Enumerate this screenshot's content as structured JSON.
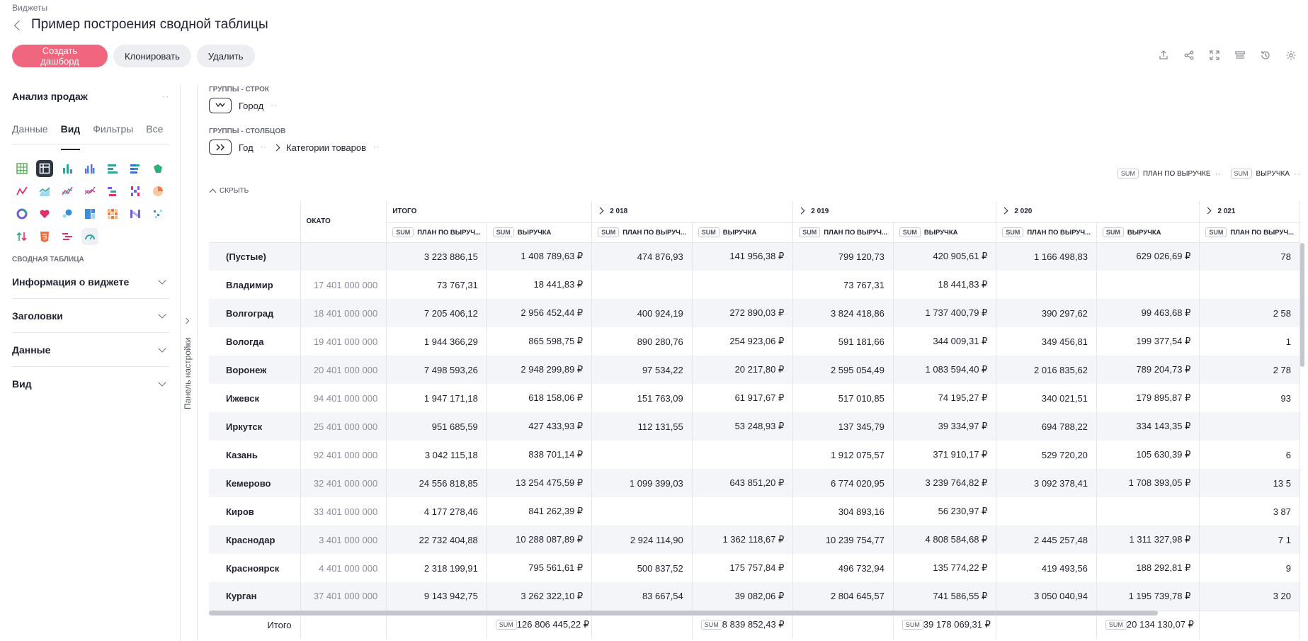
{
  "breadcrumb": "Виджеты",
  "page_title": "Пример построения сводной таблицы",
  "buttons": {
    "create": "Создать дашборд",
    "clone": "Клонировать",
    "delete": "Удалить"
  },
  "toolbar_icons": [
    "export-icon",
    "share-icon",
    "fullscreen-icon",
    "filter-panel-icon",
    "history-icon",
    "settings-icon"
  ],
  "left_panel": {
    "title": "Анализ продаж",
    "tabs": [
      "Данные",
      "Вид",
      "Фильтры",
      "Все"
    ],
    "active_tab": "Вид",
    "section_label": "СВОДНАЯ ТАБЛИЦА",
    "accordions": [
      "Информация о виджете",
      "Заголовки",
      "Данные",
      "Вид"
    ],
    "panel_settings_label": "Панель настройки"
  },
  "groups": {
    "rows_label": "ГРУППЫ - СТРОК",
    "rows_field": "Город",
    "cols_label": "ГРУППЫ - СТОЛБЦОВ",
    "cols_field_1": "Год",
    "cols_field_2": "Категории товаров"
  },
  "measures": [
    {
      "agg": "SUM",
      "name": "ПЛАН ПО ВЫРУЧКЕ"
    },
    {
      "agg": "SUM",
      "name": "ВЫРУЧКА"
    }
  ],
  "hide_label": "СКРЫТЬ",
  "table": {
    "okato_header": "ОКАТО",
    "total_header": "ИТОГО",
    "years": [
      "2 018",
      "2 019",
      "2 020",
      "2 021"
    ],
    "sum_label": "SUM",
    "plan_header": "ПЛАН ПО ВЫРУЧ...",
    "revenue_header": "ВЫРУЧКА",
    "rows": [
      {
        "city": "(Пустые)",
        "okato": "",
        "vals": [
          "3 223 886,15",
          "1 408 789,63 ₽",
          "474 876,93",
          "141 956,38 ₽",
          "799 120,73",
          "420 905,61 ₽",
          "1 166 498,83",
          "629 026,69 ₽",
          "78"
        ]
      },
      {
        "city": "Владимир",
        "okato": "17 401 000 000",
        "vals": [
          "73 767,31",
          "18 441,83 ₽",
          "",
          "",
          "73 767,31",
          "18 441,83 ₽",
          "",
          "",
          ""
        ]
      },
      {
        "city": "Волгоград",
        "okato": "18 401 000 000",
        "vals": [
          "7 205 406,12",
          "2 956 452,44 ₽",
          "400 924,19",
          "272 890,03 ₽",
          "3 824 418,86",
          "1 737 400,79 ₽",
          "390 297,62",
          "99 463,68 ₽",
          "2 58"
        ]
      },
      {
        "city": "Вологда",
        "okato": "19 401 000 000",
        "vals": [
          "1 944 366,29",
          "865 598,75 ₽",
          "890 280,76",
          "254 923,06 ₽",
          "591 181,66",
          "344 009,31 ₽",
          "349 456,81",
          "199 377,54 ₽",
          "1"
        ]
      },
      {
        "city": "Воронеж",
        "okato": "20 401 000 000",
        "vals": [
          "7 498 593,26",
          "2 948 299,89 ₽",
          "97 534,22",
          "20 217,80 ₽",
          "2 595 054,49",
          "1 083 594,40 ₽",
          "2 016 835,62",
          "789 204,73 ₽",
          "2 78"
        ]
      },
      {
        "city": "Ижевск",
        "okato": "94 401 000 000",
        "vals": [
          "1 947 171,18",
          "618 158,06 ₽",
          "151 763,09",
          "61 917,67 ₽",
          "517 010,85",
          "74 195,27 ₽",
          "340 021,51",
          "179 895,87 ₽",
          "93"
        ]
      },
      {
        "city": "Иркутск",
        "okato": "25 401 000 000",
        "vals": [
          "951 685,59",
          "427 433,93 ₽",
          "112 131,55",
          "53 248,93 ₽",
          "137 345,79",
          "39 334,97 ₽",
          "694 788,22",
          "334 143,35 ₽",
          ""
        ]
      },
      {
        "city": "Казань",
        "okato": "92 401 000 000",
        "vals": [
          "3 042 115,18",
          "838 701,14 ₽",
          "",
          "",
          "1 912 075,57",
          "371 910,17 ₽",
          "529 720,20",
          "105 630,39 ₽",
          "6"
        ]
      },
      {
        "city": "Кемерово",
        "okato": "32 401 000 000",
        "vals": [
          "24 556 818,85",
          "13 254 475,59 ₽",
          "1 099 399,03",
          "643 851,20 ₽",
          "6 774 020,95",
          "3 239 764,82 ₽",
          "3 092 378,41",
          "1 708 393,05 ₽",
          "13 5"
        ]
      },
      {
        "city": "Киров",
        "okato": "33 401 000 000",
        "vals": [
          "4 177 278,46",
          "841 262,39 ₽",
          "",
          "",
          "304 893,16",
          "56 230,97 ₽",
          "",
          "",
          "3 87"
        ]
      },
      {
        "city": "Краснодар",
        "okato": "3 401 000 000",
        "vals": [
          "22 732 404,88",
          "10 288 087,89 ₽",
          "2 924 114,90",
          "1 362 118,67 ₽",
          "10 239 754,77",
          "4 808 584,68 ₽",
          "2 445 257,48",
          "1 311 327,98 ₽",
          "7 1"
        ]
      },
      {
        "city": "Красноярск",
        "okato": "4 401 000 000",
        "vals": [
          "2 318 199,91",
          "795 561,61 ₽",
          "500 837,52",
          "175 757,84 ₽",
          "496 732,94",
          "135 774,22 ₽",
          "419 493,56",
          "188 292,81 ₽",
          "9"
        ]
      },
      {
        "city": "Курган",
        "okato": "37 401 000 000",
        "vals": [
          "9 143 942,75",
          "3 262 322,10 ₽",
          "83 667,54",
          "39 082,06 ₽",
          "2 804 645,57",
          "741 586,55 ₽",
          "3 050 040,94",
          "1 195 739,78 ₽",
          "3 20"
        ]
      }
    ],
    "footer": {
      "label": "Итого",
      "total_revenue": "126 806 445,22 ₽",
      "rev_2018": "8 839 852,43 ₽",
      "rev_2019": "39 178 069,31 ₽",
      "rev_2020": "20 134 130,07 ₽"
    }
  }
}
